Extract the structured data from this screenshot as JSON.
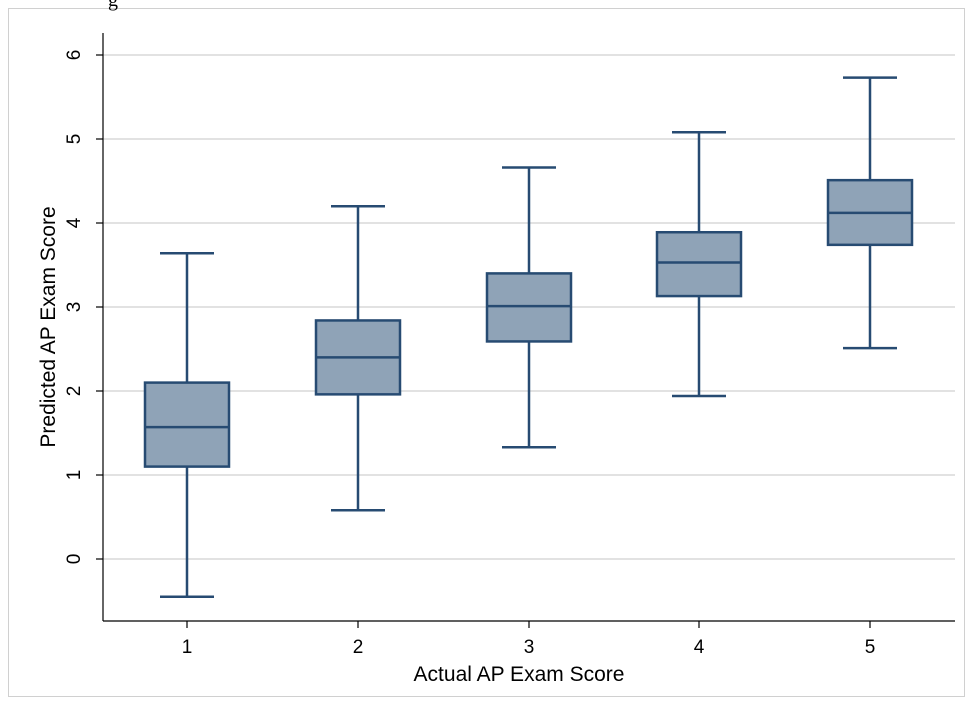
{
  "page": {
    "clipped_top_text": "g"
  },
  "chart_data": {
    "type": "box",
    "xlabel": "Actual AP Exam Score",
    "ylabel": "Predicted AP Exam Score",
    "categories": [
      "1",
      "2",
      "3",
      "4",
      "5"
    ],
    "ylim": [
      -0.7,
      6.4
    ],
    "yticks": [
      0,
      1,
      2,
      3,
      4,
      5,
      6
    ],
    "grid": true,
    "colors": {
      "box_fill": "#8fa3b7",
      "box_stroke": "#274b72",
      "grid": "#d9d9d9"
    },
    "boxes": [
      {
        "category": "1",
        "whisker_low": -0.45,
        "q1": 1.1,
        "median": 1.57,
        "q3": 2.1,
        "whisker_high": 3.64
      },
      {
        "category": "2",
        "whisker_low": 0.58,
        "q1": 1.96,
        "median": 2.4,
        "q3": 2.84,
        "whisker_high": 4.2
      },
      {
        "category": "3",
        "whisker_low": 1.33,
        "q1": 2.59,
        "median": 3.01,
        "q3": 3.4,
        "whisker_high": 4.66
      },
      {
        "category": "4",
        "whisker_low": 1.94,
        "q1": 3.13,
        "median": 3.53,
        "q3": 3.89,
        "whisker_high": 5.08
      },
      {
        "category": "5",
        "whisker_low": 2.51,
        "q1": 3.74,
        "median": 4.12,
        "q3": 4.51,
        "whisker_high": 5.73
      }
    ]
  }
}
